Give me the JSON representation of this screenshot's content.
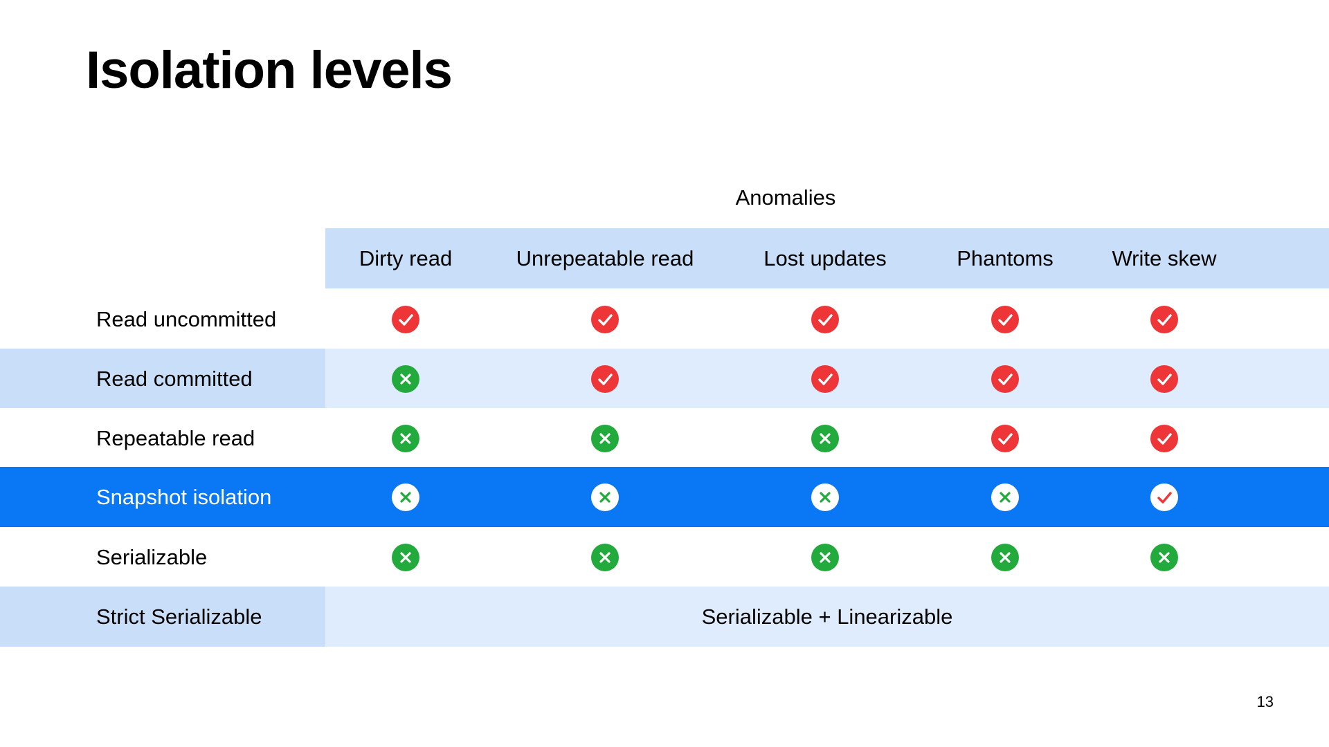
{
  "title": "Isolation levels",
  "group_header": "Anomalies",
  "columns": [
    "Dirty read",
    "Unrepeatable read",
    "Lost updates",
    "Phantoms",
    "Write skew"
  ],
  "rows": [
    {
      "label": "Read uncommitted",
      "cells": [
        "check",
        "check",
        "check",
        "check",
        "check"
      ]
    },
    {
      "label": "Read committed",
      "cells": [
        "cross",
        "check",
        "check",
        "check",
        "check"
      ]
    },
    {
      "label": "Repeatable read",
      "cells": [
        "cross",
        "cross",
        "cross",
        "check",
        "check"
      ]
    },
    {
      "label": "Snapshot isolation",
      "cells": [
        "cross",
        "cross",
        "cross",
        "cross",
        "check"
      ]
    },
    {
      "label": "Serializable",
      "cells": [
        "cross",
        "cross",
        "cross",
        "cross",
        "cross"
      ]
    },
    {
      "label": "Strict Serializable",
      "span_text": "Serializable + Linearizable"
    }
  ],
  "page_number": "13",
  "legend_icons": {
    "check": "check-circle-icon",
    "cross": "x-circle-icon"
  },
  "colors": {
    "header_band": "#c9def8",
    "light_band": "#dfecfd",
    "highlight_band": "#0a78f5",
    "check_red": "#ee3538",
    "cross_green": "#22aa3c"
  }
}
